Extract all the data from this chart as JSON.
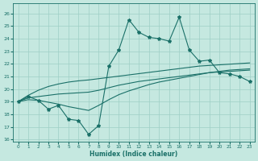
{
  "xlabel": "Humidex (Indice chaleur)",
  "xlim": [
    -0.5,
    23.5
  ],
  "ylim": [
    15.8,
    26.8
  ],
  "yticks": [
    16,
    17,
    18,
    19,
    20,
    21,
    22,
    23,
    24,
    25,
    26
  ],
  "xticks": [
    0,
    1,
    2,
    3,
    4,
    5,
    6,
    7,
    8,
    9,
    10,
    11,
    12,
    13,
    14,
    15,
    16,
    17,
    18,
    19,
    20,
    21,
    22,
    23
  ],
  "bg_color": "#c5e8e0",
  "grid_color": "#9ecfc5",
  "line_color": "#1a7068",
  "jagged_x": [
    0,
    1,
    2,
    3,
    4,
    5,
    6,
    7,
    8,
    9,
    10,
    11,
    12,
    13,
    14,
    15,
    16,
    17,
    18,
    19,
    20,
    21,
    22,
    23
  ],
  "jagged_y": [
    19.0,
    19.4,
    19.1,
    18.4,
    18.7,
    17.6,
    17.5,
    16.4,
    17.1,
    21.8,
    23.1,
    25.5,
    24.5,
    24.1,
    24.0,
    23.8,
    25.7,
    23.1,
    22.2,
    22.3,
    21.3,
    21.2,
    21.0,
    20.6
  ],
  "smooth1_x": [
    0,
    1,
    2,
    3,
    4,
    5,
    6,
    7,
    8,
    9,
    10,
    11,
    12,
    13,
    14,
    15,
    16,
    17,
    18,
    19,
    20,
    21,
    22,
    23
  ],
  "smooth1_y": [
    19.0,
    19.3,
    19.4,
    19.5,
    19.6,
    19.65,
    19.7,
    19.75,
    19.9,
    20.1,
    20.3,
    20.45,
    20.6,
    20.7,
    20.8,
    20.9,
    21.0,
    21.1,
    21.2,
    21.3,
    21.35,
    21.4,
    21.45,
    21.5
  ],
  "smooth2_x": [
    0,
    1,
    2,
    3,
    4,
    5,
    6,
    7,
    8,
    9,
    10,
    11,
    12,
    13,
    14,
    15,
    16,
    17,
    18,
    19,
    20,
    21,
    22,
    23
  ],
  "smooth2_y": [
    19.0,
    19.5,
    19.9,
    20.2,
    20.4,
    20.55,
    20.65,
    20.72,
    20.82,
    20.92,
    21.02,
    21.12,
    21.22,
    21.32,
    21.42,
    21.52,
    21.62,
    21.72,
    21.82,
    21.87,
    21.92,
    21.97,
    22.02,
    22.07
  ],
  "smooth3_x": [
    0,
    1,
    2,
    3,
    4,
    5,
    6,
    7,
    8,
    9,
    10,
    11,
    12,
    13,
    14,
    15,
    16,
    17,
    18,
    19,
    20,
    21,
    22,
    23
  ],
  "smooth3_y": [
    19.0,
    19.15,
    19.1,
    18.95,
    18.8,
    18.6,
    18.45,
    18.3,
    18.7,
    19.15,
    19.55,
    19.85,
    20.1,
    20.35,
    20.55,
    20.7,
    20.85,
    21.0,
    21.15,
    21.3,
    21.4,
    21.5,
    21.55,
    21.6
  ]
}
